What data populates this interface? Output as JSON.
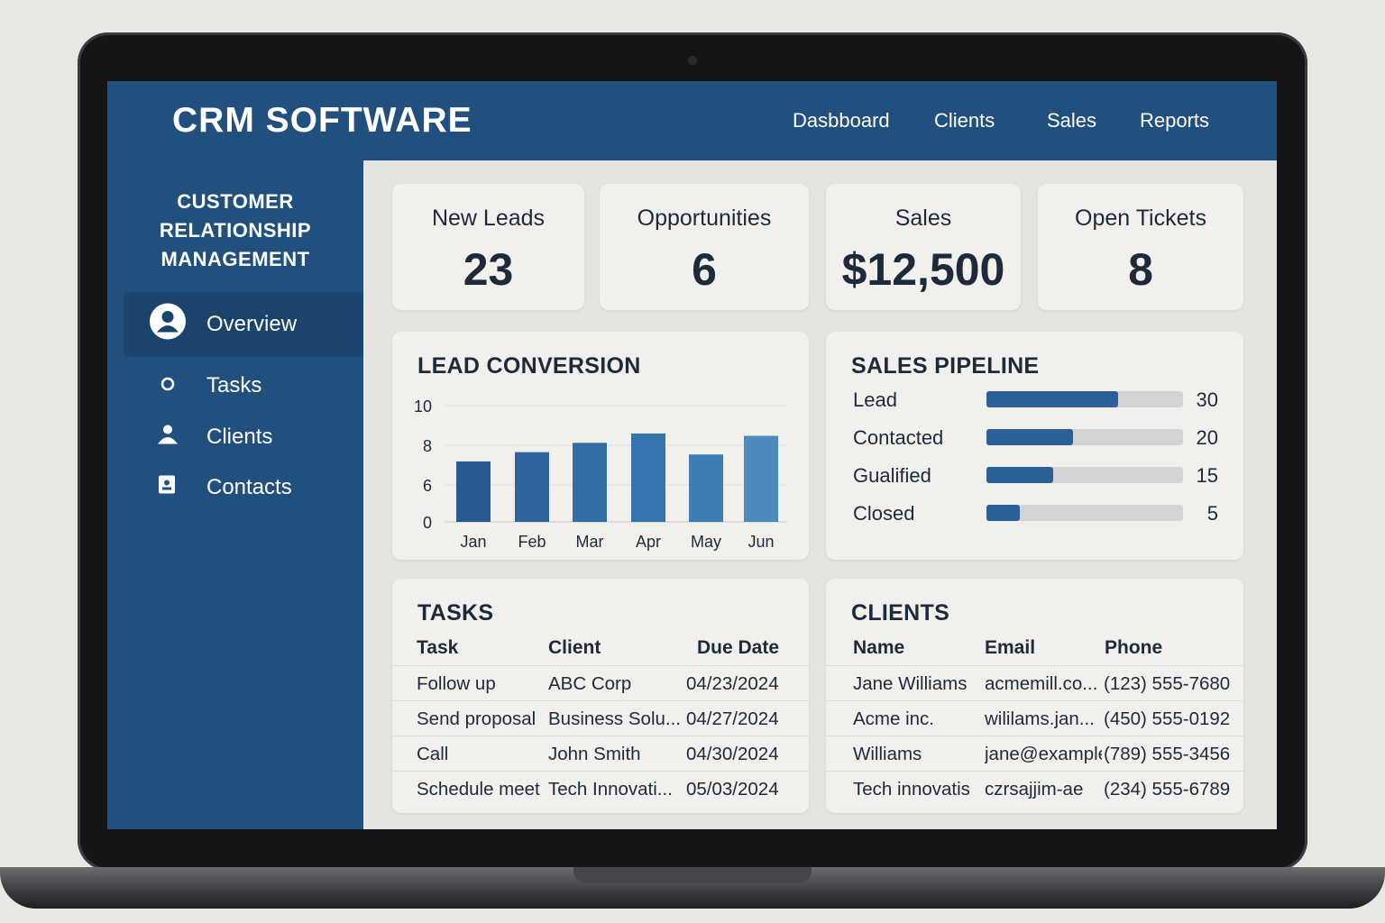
{
  "app": {
    "title": "CRM SOFTWARE"
  },
  "nav": {
    "items": [
      "Dasbboard",
      "Clients",
      "Sales",
      "Reports"
    ]
  },
  "sidebar": {
    "title_lines": [
      "CUSTOMER",
      "RELATIONSHIP",
      "MANAGEMENT"
    ],
    "items": [
      {
        "label": "Overview",
        "icon": "user-circle-icon",
        "active": true
      },
      {
        "label": "Tasks",
        "icon": "circle-icon",
        "active": false
      },
      {
        "label": "Clients",
        "icon": "person-icon",
        "active": false
      },
      {
        "label": "Contacts",
        "icon": "contact-card-icon",
        "active": false
      }
    ]
  },
  "kpis": [
    {
      "label": "New Leads",
      "value": "23"
    },
    {
      "label": "Opportunities",
      "value": "6"
    },
    {
      "label": "Sales",
      "value": "$12,500"
    },
    {
      "label": "Open Tickets",
      "value": "8"
    }
  ],
  "lead_conversion": {
    "title": "LEAD CONVERSION"
  },
  "chart_data": {
    "type": "bar",
    "title": "LEAD CONVERSION",
    "categories": [
      "Jan",
      "Feb",
      "Mar",
      "Apr",
      "May",
      "Jun"
    ],
    "values": [
      5.2,
      6.0,
      6.8,
      7.6,
      5.8,
      7.4
    ],
    "y_ticks": [
      "10",
      "8",
      "6",
      "0"
    ],
    "xlabel": "",
    "ylabel": "",
    "grid": true,
    "colors": [
      "#2a5a92",
      "#2f659e",
      "#336ea8",
      "#3574ae",
      "#3f7db6",
      "#4c89bf"
    ]
  },
  "pipeline": {
    "title": "SALES PIPELINE",
    "max": 50,
    "stages": [
      {
        "label": "Lead",
        "value": "30",
        "fill": 0.67
      },
      {
        "label": "Contacted",
        "value": "20",
        "fill": 0.44
      },
      {
        "label": "Gualified",
        "value": "15",
        "fill": 0.34
      },
      {
        "label": "Closed",
        "value": "5",
        "fill": 0.17
      }
    ]
  },
  "tasks": {
    "title": "TASKS",
    "columns": [
      "Task",
      "Client",
      "Due Date"
    ],
    "rows": [
      [
        "Follow up",
        "ABC Corp",
        "04/23/2024"
      ],
      [
        "Send proposal",
        "Business Solu...",
        "04/27/2024"
      ],
      [
        "Call",
        "John Smith",
        "04/30/2024"
      ],
      [
        "Schedule meet",
        "Tech Innovati...",
        "05/03/2024"
      ]
    ]
  },
  "clients": {
    "title": "CLIENTS",
    "columns": [
      "Name",
      "Email",
      "Phone"
    ],
    "rows": [
      [
        "Jane Williams",
        "acmemill.co...",
        "(123) 555-7680"
      ],
      [
        "Acme inc.",
        "wililams.jan...",
        "(450) 555-0192"
      ],
      [
        "Williams",
        "jane@example.com",
        "(789) 555-3456"
      ],
      [
        "Tech innovatis",
        "czrsajjim-ae",
        "(234) 555-6789"
      ]
    ]
  },
  "colors": {
    "primary": "#22507e",
    "sidebar_active": "#1b446d",
    "card": "#f2f0ec",
    "text": "#1d2a3a",
    "bar": "#2a5f97"
  }
}
